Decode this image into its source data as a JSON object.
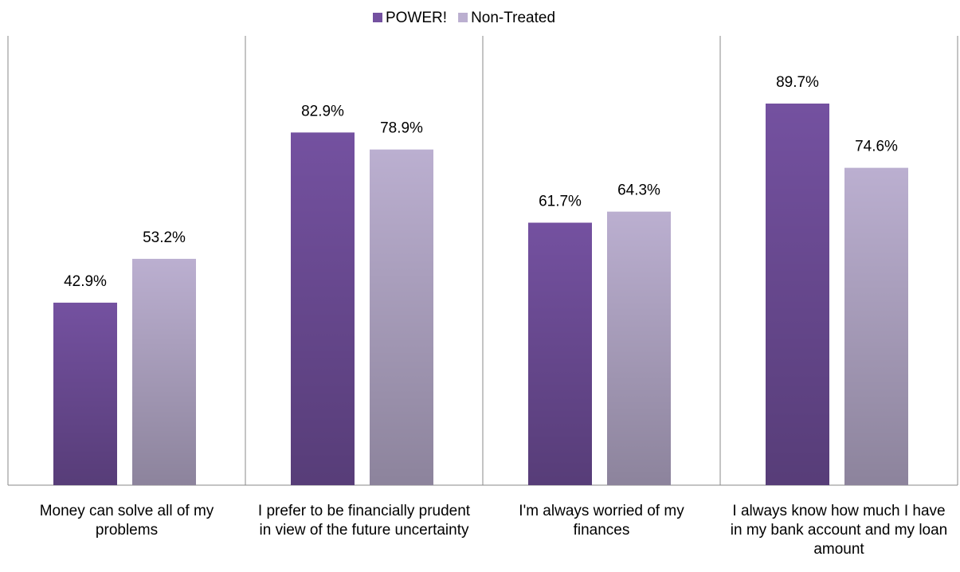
{
  "chart_data": {
    "type": "bar",
    "categories": [
      "Money can solve all of my problems",
      "I prefer to be financially prudent in view of the future uncertainty",
      "I'm always worried of my finances",
      "I always know how much I have in my bank account and my loan amount"
    ],
    "series": [
      {
        "name": "POWER!",
        "color": "#7451a0",
        "values": [
          42.9,
          82.9,
          61.7,
          89.7
        ],
        "value_labels": [
          "42.9%",
          "82.9%",
          "61.7%",
          "89.7%"
        ]
      },
      {
        "name": "Non-Treated",
        "color": "#bbafd0",
        "values": [
          53.2,
          78.9,
          64.3,
          74.6
        ],
        "value_labels": [
          "53.2%",
          "78.9%",
          "64.3%",
          "74.6%"
        ]
      }
    ],
    "ylim": [
      0,
      100
    ],
    "legend": "top"
  }
}
